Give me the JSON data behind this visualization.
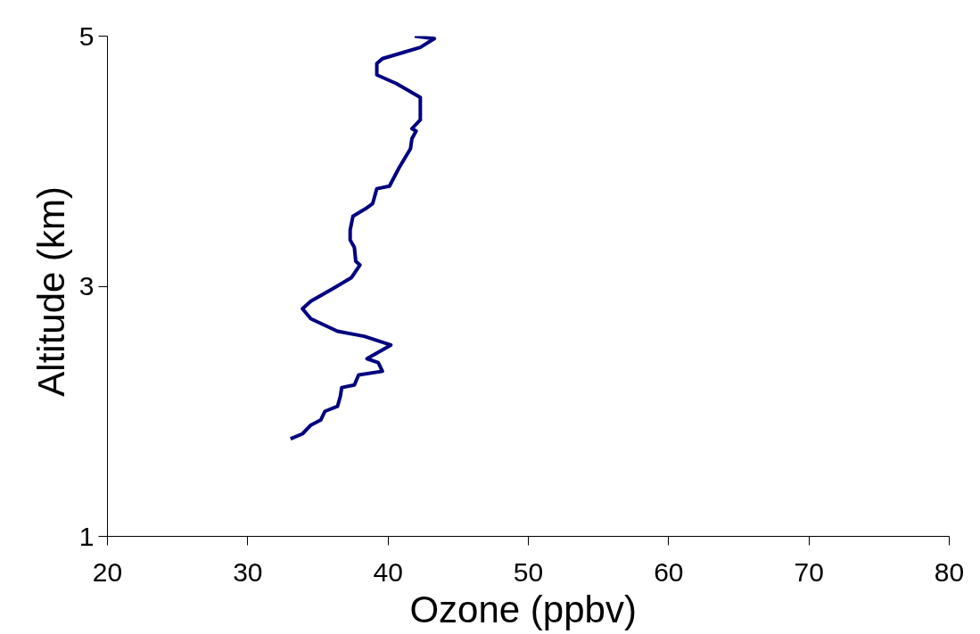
{
  "chart_data": {
    "type": "line",
    "xlabel": "Ozone  (ppbv)",
    "ylabel": "Altitude  (km)",
    "xlim": [
      20,
      80
    ],
    "ylim": [
      1,
      5
    ],
    "xticks": [
      20,
      30,
      40,
      50,
      60,
      70,
      80
    ],
    "yticks": [
      1,
      3,
      5
    ],
    "grid": false,
    "marker": "none",
    "line_style": "solid",
    "series": [
      {
        "color": "#000080",
        "x": [
          33.05,
          33.9,
          34.5,
          35.2,
          35.5,
          36.4,
          36.6,
          36.7,
          37.6,
          37.9,
          39.6,
          39.3,
          38.5,
          40.2,
          38.3,
          36.4,
          34.5,
          33.9,
          34.5,
          36.2,
          37.4,
          38.0,
          37.7,
          37.6,
          37.3,
          37.3,
          37.5,
          38.4,
          38.9,
          39.2,
          40.1,
          40.8,
          41.6,
          41.7,
          42.0,
          41.7,
          42.3,
          42.3,
          40.6,
          39.2,
          39.2,
          39.6,
          41.1,
          42.3,
          43.3,
          41.9
        ],
        "values": [
          1.78,
          1.82,
          1.89,
          1.93,
          2.0,
          2.04,
          2.12,
          2.19,
          2.21,
          2.29,
          2.32,
          2.39,
          2.42,
          2.53,
          2.6,
          2.64,
          2.74,
          2.82,
          2.88,
          2.99,
          3.07,
          3.17,
          3.2,
          3.31,
          3.37,
          3.45,
          3.56,
          3.62,
          3.66,
          3.78,
          3.8,
          3.95,
          4.1,
          4.18,
          4.24,
          4.26,
          4.33,
          4.51,
          4.62,
          4.69,
          4.78,
          4.82,
          4.87,
          4.91,
          4.98,
          5.0
        ]
      }
    ]
  }
}
